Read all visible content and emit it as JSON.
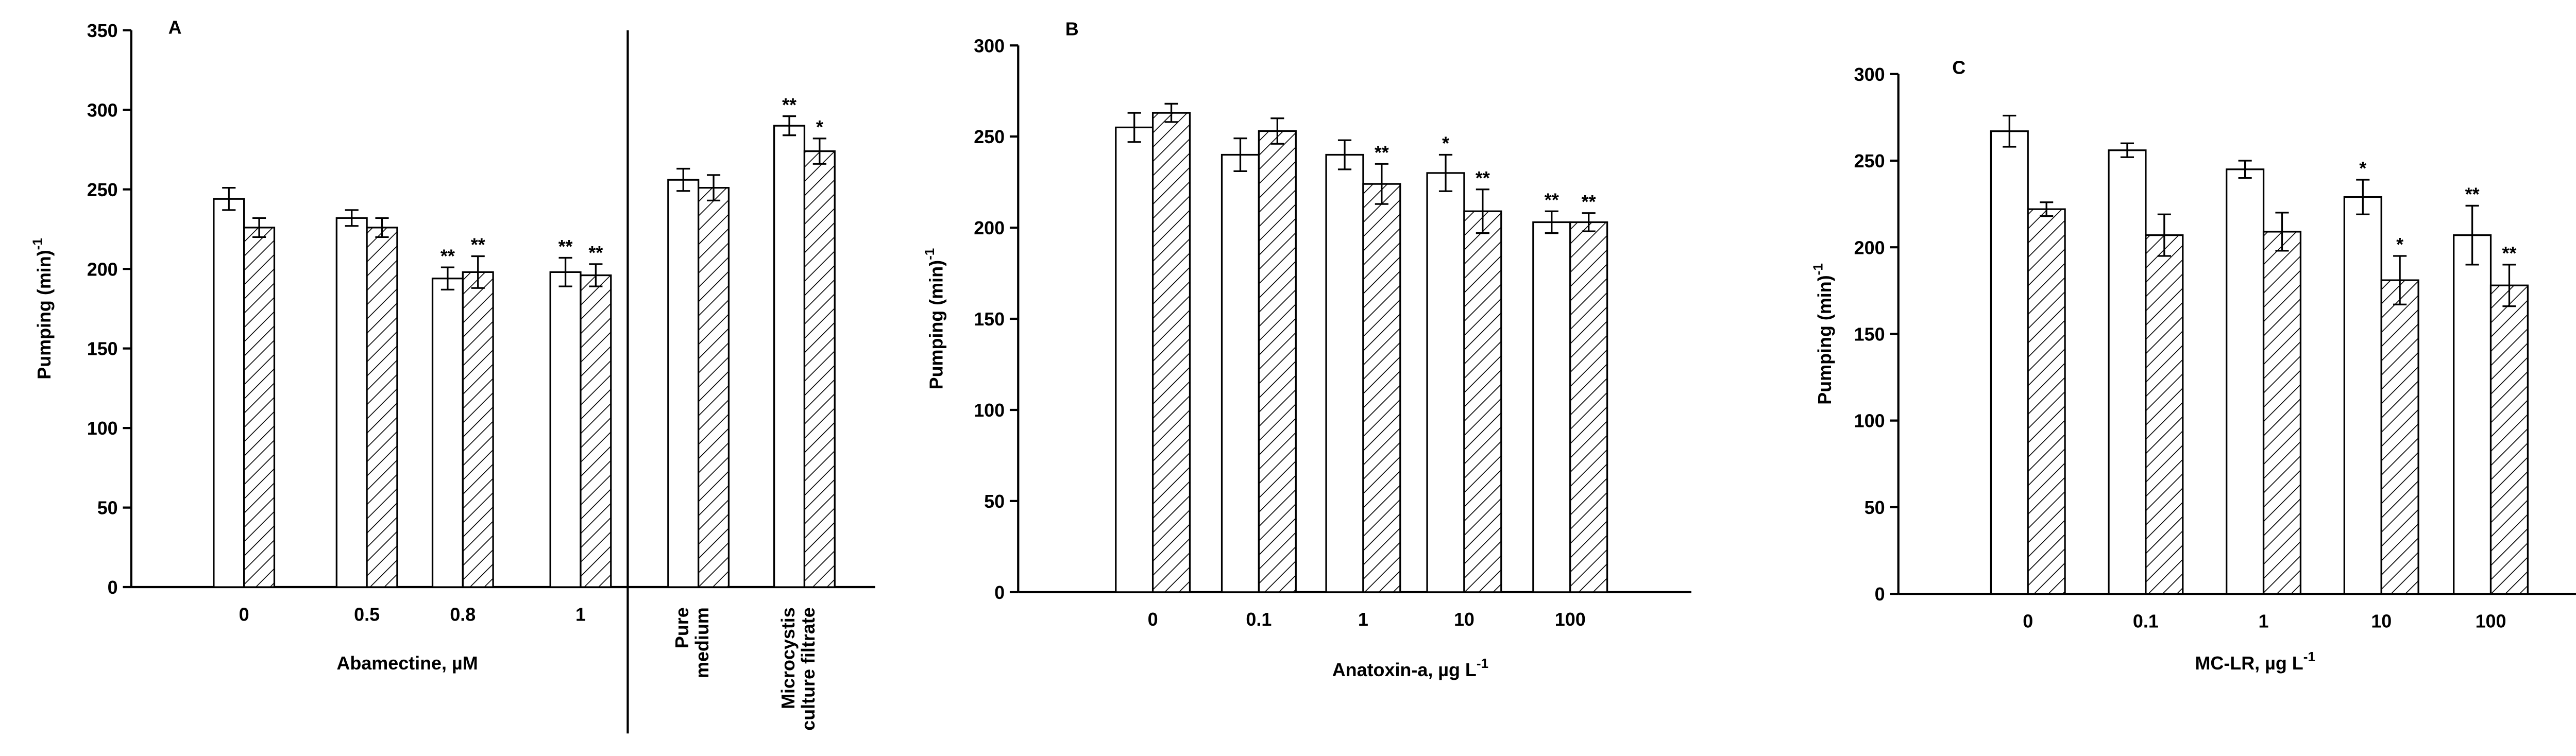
{
  "chart_data": [
    {
      "type": "bar",
      "panel": "A",
      "ylabel": "Pumping (min)",
      "ylabel_sup": "-1",
      "xlabel": "Abamectine, µM",
      "categories": [
        "0",
        "0.5",
        "0.8",
        "1",
        [
          "Pure",
          "medium"
        ],
        [
          "Microcystis",
          "culture filtrate"
        ]
      ],
      "ylim": [
        0,
        350
      ],
      "yticks": [
        0,
        50,
        100,
        150,
        200,
        250,
        300,
        350
      ],
      "series": [
        {
          "color": "#ffffff",
          "values": [
            244,
            232,
            194,
            198,
            256,
            290
          ],
          "errors": [
            7,
            5,
            7,
            9,
            7,
            6
          ],
          "significance": [
            null,
            null,
            "**",
            "**",
            null,
            "**"
          ]
        },
        {
          "color": "#ffffff",
          "hatch": true,
          "values": [
            226,
            226,
            198,
            196,
            251,
            274
          ],
          "errors": [
            6,
            6,
            10,
            7,
            8,
            8
          ],
          "significance": [
            null,
            null,
            "**",
            "**",
            null,
            "*"
          ]
        }
      ]
    },
    {
      "type": "bar",
      "panel": "B",
      "ylabel": "Pumping (min)",
      "ylabel_sup": "-1",
      "xlabel": "Anatoxin-a, µg L",
      "xlabel_sup": "-1",
      "categories": [
        "0",
        "0.1",
        "1",
        "10",
        "100"
      ],
      "ylim": [
        0,
        300
      ],
      "yticks": [
        0,
        50,
        100,
        150,
        200,
        250,
        300
      ],
      "series": [
        {
          "color": "#ffffff",
          "values": [
            255,
            240,
            240,
            230,
            203
          ],
          "errors": [
            8,
            9,
            8,
            10,
            6
          ],
          "significance": [
            null,
            null,
            null,
            "*",
            "**"
          ]
        },
        {
          "color": "#ffffff",
          "hatch": true,
          "values": [
            263,
            253,
            224,
            209,
            203
          ],
          "errors": [
            5,
            7,
            11,
            12,
            5
          ],
          "significance": [
            null,
            null,
            "**",
            "**",
            "**"
          ]
        }
      ]
    },
    {
      "type": "bar",
      "panel": "C",
      "ylabel": "Pumping (min)",
      "ylabel_sup": "-1",
      "xlabel": "MC-LR, µg L",
      "xlabel_sup": "-1",
      "categories": [
        "0",
        "0.1",
        "1",
        "10",
        "100"
      ],
      "ylim": [
        0,
        300
      ],
      "yticks": [
        0,
        50,
        100,
        150,
        200,
        250,
        300
      ],
      "series": [
        {
          "color": "#ffffff",
          "values": [
            267,
            256,
            245,
            229,
            207
          ],
          "errors": [
            9,
            4,
            5,
            10,
            17
          ],
          "significance": [
            null,
            null,
            null,
            "*",
            "**"
          ]
        },
        {
          "color": "#ffffff",
          "hatch": true,
          "values": [
            222,
            207,
            209,
            181,
            178
          ],
          "errors": [
            4,
            12,
            11,
            14,
            12
          ],
          "significance": [
            null,
            null,
            null,
            "*",
            "**"
          ]
        }
      ]
    }
  ]
}
